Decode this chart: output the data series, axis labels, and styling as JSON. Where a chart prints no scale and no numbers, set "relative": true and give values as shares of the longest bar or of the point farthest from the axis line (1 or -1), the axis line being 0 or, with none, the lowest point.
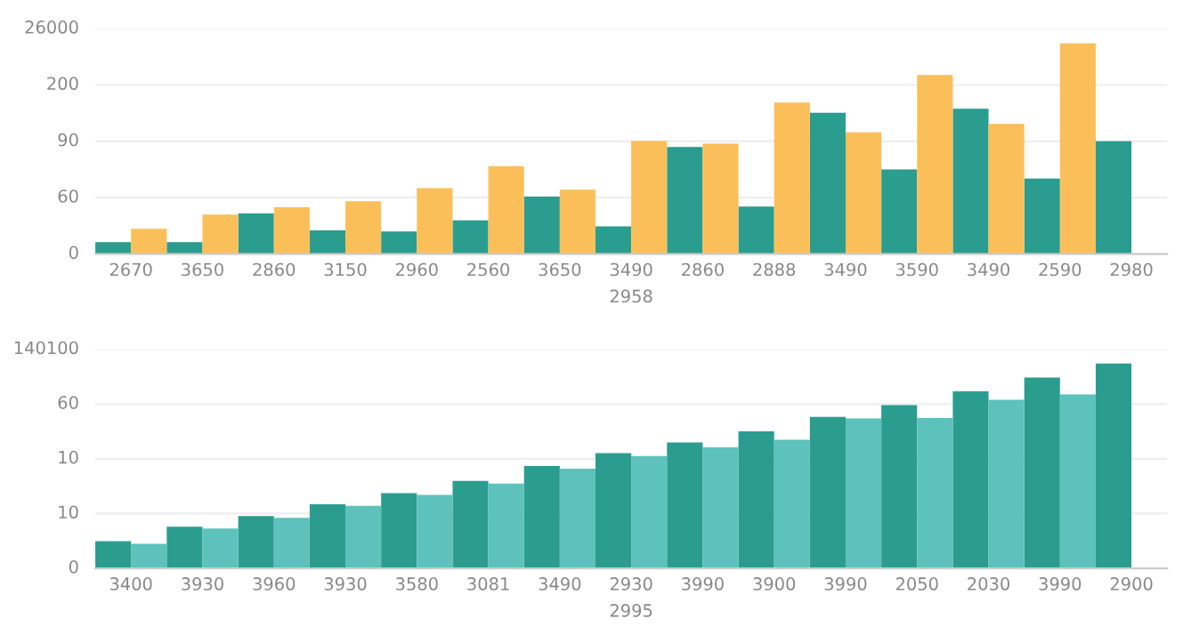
{
  "chart_data": [
    {
      "type": "bar",
      "xlabel": "2958",
      "relative": true,
      "categories": [
        "2670",
        "3650",
        "2860",
        "3150",
        "2960",
        "2560",
        "3650",
        "3490",
        "2860",
        "2888",
        "3490",
        "3590",
        "3490",
        "2590",
        "2980"
      ],
      "series": [
        {
          "color": "#2a9d8f",
          "values": [
            0.056,
            0.056,
            0.193,
            0.112,
            0.107,
            0.16,
            0.273,
            0.131,
            0.508,
            0.225,
            0.671,
            0.401,
            0.69,
            0.358,
            0.535
          ]
        },
        {
          "color": "#fbbf5a",
          "values": [
            0.12,
            0.187,
            0.222,
            0.251,
            0.313,
            0.417,
            0.305,
            0.537,
            0.524,
            0.719,
            0.578,
            0.85,
            0.618,
            1.0,
            null
          ]
        }
      ],
      "annotations": [
        "0",
        "60",
        "90",
        "200",
        "26000"
      ],
      "grid": "y",
      "legend": false
    },
    {
      "type": "bar",
      "xlabel": "2995",
      "relative": true,
      "categories": [
        "3400",
        "3930",
        "3960",
        "3930",
        "3580",
        "3081",
        "3490",
        "2930",
        "3990",
        "3900",
        "3990",
        "2050",
        "2030",
        "3990",
        "2900"
      ],
      "series": [
        {
          "color": "#2a9d8f",
          "values": [
            0.133,
            0.203,
            0.255,
            0.313,
            0.367,
            0.427,
            0.5,
            0.563,
            0.615,
            0.669,
            0.74,
            0.797,
            0.865,
            0.932,
            1.0
          ]
        },
        {
          "color": "#5cc2bb",
          "values": [
            0.12,
            0.195,
            0.247,
            0.305,
            0.359,
            0.414,
            0.487,
            0.549,
            0.591,
            0.628,
            0.732,
            0.734,
            0.823,
            0.849,
            null
          ]
        }
      ],
      "annotations": [
        "0",
        "10",
        "10",
        "60",
        "140100"
      ],
      "grid": "y",
      "legend": false
    }
  ]
}
